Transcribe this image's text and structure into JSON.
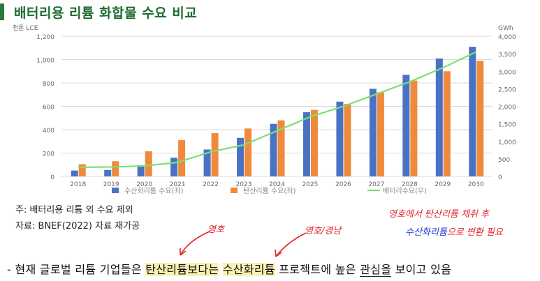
{
  "title": "배터리용 리튬 화합물 수요 비교",
  "chart_data": {
    "type": "bar",
    "left_axis_label": "천톤 LCE",
    "right_axis_label": "GWh",
    "categories": [
      "2018",
      "2019",
      "2020",
      "2021",
      "2022",
      "2023",
      "2024",
      "2025",
      "2026",
      "2027",
      "2028",
      "2029",
      "2030"
    ],
    "left_ticks": [
      "0",
      "200",
      "400",
      "600",
      "800",
      "1,000",
      "1,200"
    ],
    "right_ticks": [
      "0",
      "500",
      "1,000",
      "1,500",
      "2,000",
      "2,500",
      "3,000",
      "3,500",
      "4,000"
    ],
    "ylim_left": [
      0,
      1200
    ],
    "ylim_right": [
      0,
      4000
    ],
    "series": [
      {
        "name": "수산화리튬 수요(좌)",
        "type": "bar",
        "axis": "left",
        "color": "#4a72c4",
        "values": [
          50,
          55,
          95,
          160,
          230,
          330,
          450,
          550,
          640,
          750,
          870,
          1010,
          1110
        ]
      },
      {
        "name": "탄산리튬 수요(좌)",
        "type": "bar",
        "axis": "left",
        "color": "#ef8a3c",
        "values": [
          105,
          130,
          215,
          310,
          370,
          410,
          480,
          570,
          620,
          720,
          820,
          900,
          990
        ]
      },
      {
        "name": "배터리수요(우)",
        "type": "line",
        "axis": "right",
        "color": "#7ddf72",
        "values": [
          260,
          270,
          300,
          400,
          700,
          900,
          1300,
          1700,
          2000,
          2350,
          2700,
          3100,
          3550
        ]
      }
    ]
  },
  "notes": {
    "note1": "주: 배터리용 리튬 외 수요 제외",
    "note2": "자료: BNEF(2022) 자료 재가공"
  },
  "handwriting": {
    "young": "영호",
    "young_chile": "영호/경남",
    "right_line1": "영호에서 탄산리튬 채취 후",
    "right_line2_blue": "수산화리튬",
    "right_line2_rest": "으로 변환 필요"
  },
  "bottom": {
    "prefix": "- 현재 글로벌 리튬 기업들은 ",
    "hl1": "탄산리튬보다는",
    "mid": " ",
    "hl2": "수산화리튬",
    "mid2": " 프로젝트에 높은 ",
    "ul": "관심을",
    "suffix": " 보이고 있음"
  }
}
